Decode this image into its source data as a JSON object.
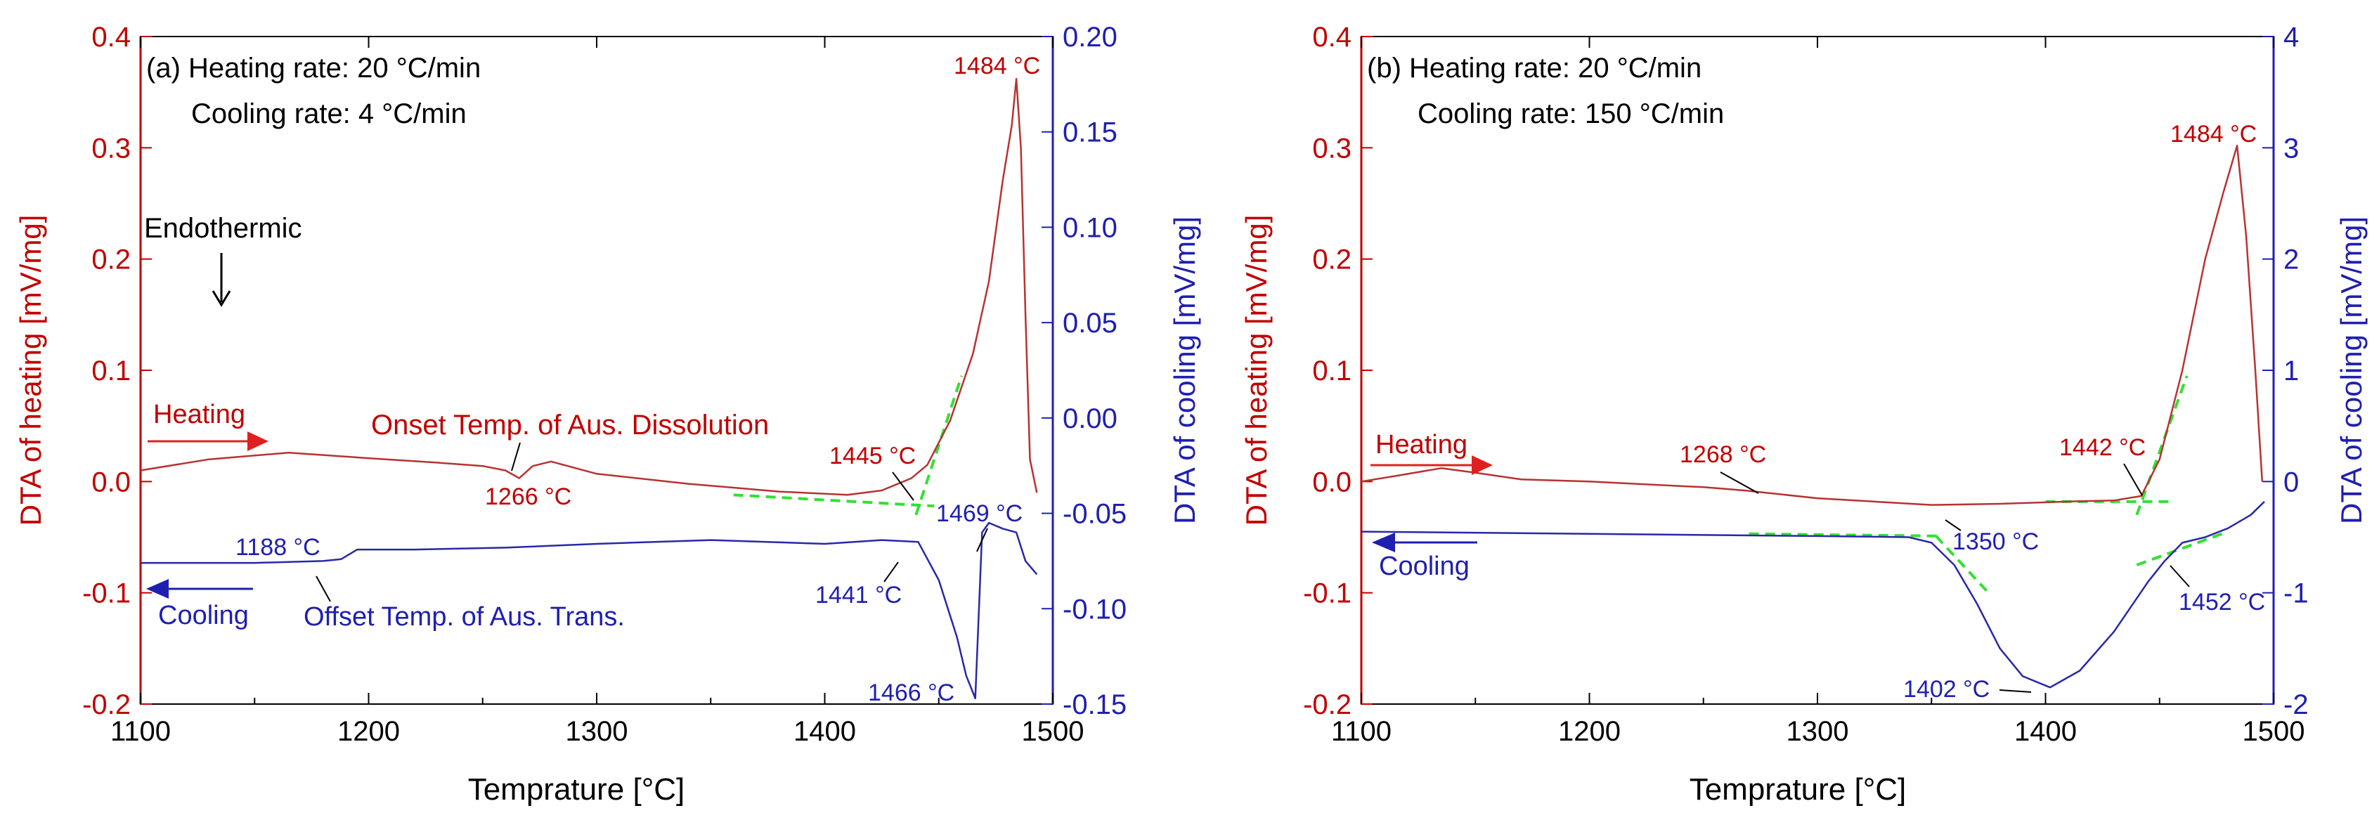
{
  "colors": {
    "heating": "#c00000",
    "cooling": "#1f1fb0",
    "heating_line": "#b83232",
    "cooling_line": "#2828a8",
    "tangent": "#33e033",
    "axis": "#000000"
  },
  "chart_data": [
    {
      "type": "line",
      "panel_label": "(a)",
      "heating_rate_text": "(a) Heating rate: 20 °C/min",
      "cooling_rate_text": "Cooling rate: 4 °C/min",
      "xlabel": "Temprature [°C]",
      "ylabel_left": "DTA of heating [mV/mg]",
      "ylabel_right": "DTA of cooling [mV/mg]",
      "xlim": [
        1100,
        1500
      ],
      "xticks": [
        1100,
        1200,
        1300,
        1400,
        1500
      ],
      "xtick_labels": [
        "1100",
        "1200",
        "1300",
        "1400",
        "1500"
      ],
      "ylim_left": [
        -0.2,
        0.4
      ],
      "yticks_left": [
        -0.2,
        -0.1,
        0.0,
        0.1,
        0.2,
        0.3,
        0.4
      ],
      "ytick_labels_left": [
        "-0.2",
        "-0.1",
        "0.0",
        "0.1",
        "0.2",
        "0.3",
        "0.4"
      ],
      "ylim_right": [
        -0.15,
        0.2
      ],
      "yticks_right": [
        -0.15,
        -0.1,
        -0.05,
        0.0,
        0.05,
        0.1,
        0.15,
        0.2
      ],
      "ytick_labels_right": [
        "-0.15",
        "-0.10",
        "-0.05",
        "0.00",
        "0.05",
        "0.10",
        "0.15",
        "0.20"
      ],
      "series": [
        {
          "name": "Heating",
          "axis": "left",
          "color": "#b83232",
          "x": [
            1100,
            1130,
            1165,
            1200,
            1230,
            1250,
            1260,
            1266,
            1272,
            1280,
            1300,
            1340,
            1380,
            1410,
            1425,
            1438,
            1445,
            1455,
            1465,
            1472,
            1478,
            1482,
            1484,
            1486,
            1488,
            1490,
            1493
          ],
          "y": [
            0.01,
            0.02,
            0.026,
            0.021,
            0.017,
            0.014,
            0.01,
            0.003,
            0.014,
            0.018,
            0.007,
            -0.002,
            -0.009,
            -0.012,
            -0.008,
            0.003,
            0.015,
            0.055,
            0.115,
            0.18,
            0.27,
            0.32,
            0.362,
            0.3,
            0.15,
            0.02,
            -0.01
          ]
        },
        {
          "name": "Cooling",
          "axis": "right",
          "color": "#2828a8",
          "x": [
            1100,
            1150,
            1180,
            1188,
            1195,
            1220,
            1260,
            1300,
            1350,
            1400,
            1425,
            1441,
            1450,
            1458,
            1462,
            1466,
            1469,
            1472,
            1478,
            1484,
            1488,
            1493
          ],
          "y": [
            -0.076,
            -0.076,
            -0.075,
            -0.074,
            -0.069,
            -0.069,
            -0.068,
            -0.066,
            -0.064,
            -0.066,
            -0.064,
            -0.065,
            -0.085,
            -0.115,
            -0.135,
            -0.147,
            -0.06,
            -0.055,
            -0.058,
            -0.06,
            -0.075,
            -0.082
          ]
        }
      ],
      "tangent_lines": [
        {
          "axis": "left",
          "x": [
            1360,
            1448
          ],
          "y": [
            -0.012,
            -0.022
          ]
        },
        {
          "axis": "left",
          "x": [
            1440,
            1460
          ],
          "y": [
            -0.03,
            0.095
          ]
        }
      ],
      "annotations": [
        {
          "text": "1484 °C",
          "x": 1484,
          "y": 0.362,
          "color": "heating"
        },
        {
          "text": "1445 °C",
          "x": 1445,
          "y": 0.015,
          "color": "heating"
        },
        {
          "text": "1266 °C",
          "x": 1266,
          "y": 0.003,
          "color": "heating"
        },
        {
          "text": "Onset Temp. of Aus. Dissolution",
          "color": "heating"
        },
        {
          "text": "1188 °C",
          "x": 1188,
          "y": -0.074,
          "color": "cooling"
        },
        {
          "text": "Offset Temp. of Aus. Trans.",
          "color": "cooling"
        },
        {
          "text": "1441 °C",
          "x": 1441,
          "y": -0.065,
          "color": "cooling"
        },
        {
          "text": "1469 °C",
          "x": 1469,
          "y": -0.06,
          "color": "cooling"
        },
        {
          "text": "1466 °C",
          "x": 1466,
          "y": -0.147,
          "color": "cooling"
        },
        {
          "text": "Endothermic",
          "color": "axis"
        },
        {
          "text": "Heating",
          "color": "heating"
        },
        {
          "text": "Cooling",
          "color": "cooling"
        }
      ]
    },
    {
      "type": "line",
      "panel_label": "(b)",
      "heating_rate_text": "(b) Heating rate: 20 °C/min",
      "cooling_rate_text": "Cooling rate: 150 °C/min",
      "xlabel": "Temprature [°C]",
      "ylabel_left": "DTA of heating [mV/mg]",
      "ylabel_right": "DTA of cooling [mV/mg]",
      "xlim": [
        1100,
        1500
      ],
      "xticks": [
        1100,
        1200,
        1300,
        1400,
        1500
      ],
      "xtick_labels": [
        "1100",
        "1200",
        "1300",
        "1400",
        "1500"
      ],
      "ylim_left": [
        -0.2,
        0.4
      ],
      "yticks_left": [
        -0.2,
        -0.1,
        0.0,
        0.1,
        0.2,
        0.3,
        0.4
      ],
      "ytick_labels_left": [
        "-0.2",
        "-0.1",
        "0.0",
        "0.1",
        "0.2",
        "0.3",
        "0.4"
      ],
      "ylim_right": [
        -2,
        4
      ],
      "yticks_right": [
        -2,
        -1,
        0,
        1,
        2,
        3,
        4
      ],
      "ytick_labels_right": [
        "-2",
        "-1",
        "0",
        "1",
        "2",
        "3",
        "4"
      ],
      "series": [
        {
          "name": "Heating",
          "axis": "left",
          "color": "#b83232",
          "x": [
            1100,
            1115,
            1135,
            1150,
            1170,
            1200,
            1250,
            1268,
            1300,
            1350,
            1380,
            1410,
            1430,
            1442,
            1450,
            1460,
            1470,
            1478,
            1484,
            1488,
            1492,
            1495
          ],
          "y": [
            0.0,
            0.005,
            0.012,
            0.008,
            0.002,
            0.0,
            -0.005,
            -0.008,
            -0.015,
            -0.021,
            -0.02,
            -0.018,
            -0.017,
            -0.013,
            0.02,
            0.1,
            0.2,
            0.26,
            0.302,
            0.22,
            0.1,
            0.0
          ]
        },
        {
          "name": "Cooling",
          "axis": "right",
          "color": "#2828a8",
          "x": [
            1100,
            1200,
            1300,
            1340,
            1350,
            1360,
            1370,
            1380,
            1390,
            1402,
            1415,
            1430,
            1445,
            1452,
            1460,
            1470,
            1480,
            1490,
            1496
          ],
          "y": [
            -0.45,
            -0.47,
            -0.49,
            -0.5,
            -0.55,
            -0.75,
            -1.1,
            -1.5,
            -1.75,
            -1.85,
            -1.7,
            -1.35,
            -0.9,
            -0.72,
            -0.55,
            -0.5,
            -0.42,
            -0.3,
            -0.18
          ]
        }
      ],
      "tangent_lines": [
        {
          "axis": "left",
          "x": [
            1270,
            1355
          ],
          "y": [
            -0.047,
            -0.049
          ]
        },
        {
          "axis": "left",
          "x": [
            1352,
            1375
          ],
          "y": [
            -0.049,
            -0.1
          ]
        },
        {
          "axis": "left",
          "x": [
            1440,
            1462
          ],
          "y": [
            -0.03,
            0.095
          ]
        },
        {
          "axis": "left",
          "x": [
            1400,
            1455
          ],
          "y": [
            -0.018,
            -0.018
          ]
        },
        {
          "axis": "left",
          "x": [
            1440,
            1480
          ],
          "y": [
            -0.075,
            -0.045
          ]
        }
      ],
      "annotations": [
        {
          "text": "1484 °C",
          "x": 1484,
          "y": 0.302,
          "color": "heating"
        },
        {
          "text": "1268 °C",
          "x": 1268,
          "y": -0.008,
          "color": "heating"
        },
        {
          "text": "1442 °C",
          "x": 1442,
          "y": -0.013,
          "color": "heating"
        },
        {
          "text": "1350 °C",
          "x": 1350,
          "y": -0.55,
          "color": "cooling"
        },
        {
          "text": "1452 °C",
          "x": 1452,
          "y": -0.72,
          "color": "cooling"
        },
        {
          "text": "1402 °C",
          "x": 1402,
          "y": -1.85,
          "color": "cooling"
        },
        {
          "text": "Heating",
          "color": "heating"
        },
        {
          "text": "Cooling",
          "color": "cooling"
        }
      ]
    }
  ]
}
